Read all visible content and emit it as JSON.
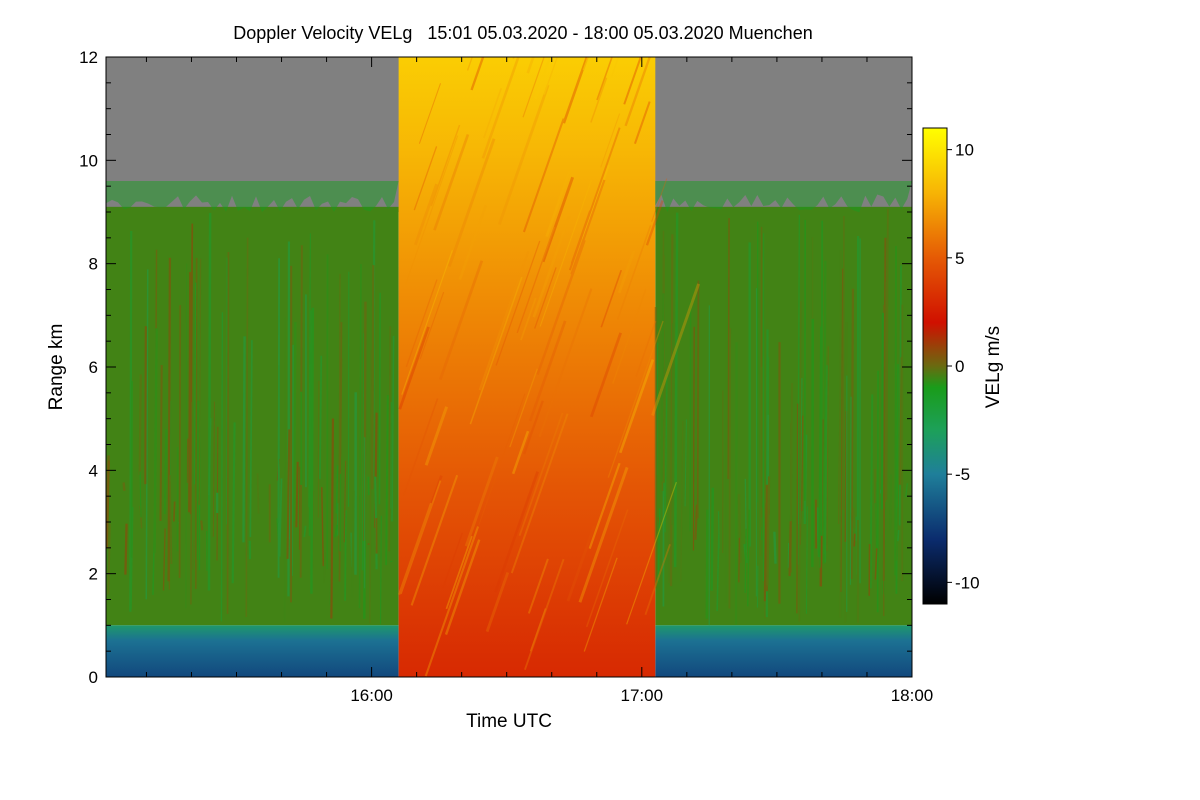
{
  "chart_data": {
    "type": "heatmap",
    "title": "Doppler Velocity VELg   15:01 05.03.2020 - 18:00 05.03.2020 Muenchen",
    "xlabel": "Time UTC",
    "ylabel": "Range km",
    "colorbar_label": "VELg m/s",
    "xlim_hours": [
      15.017,
      18.0
    ],
    "ylim_km": [
      0,
      12
    ],
    "clim": [
      -11,
      11
    ],
    "x_ticks": [
      {
        "value": 16.0,
        "label": "16:00"
      },
      {
        "value": 17.0,
        "label": "17:00"
      },
      {
        "value": 18.0,
        "label": "18:00"
      }
    ],
    "y_ticks": [
      {
        "value": 0,
        "label": "0"
      },
      {
        "value": 2,
        "label": "2"
      },
      {
        "value": 4,
        "label": "4"
      },
      {
        "value": 6,
        "label": "6"
      },
      {
        "value": 8,
        "label": "8"
      },
      {
        "value": 10,
        "label": "10"
      },
      {
        "value": 12,
        "label": "12"
      }
    ],
    "colorbar_ticks": [
      {
        "value": 10,
        "label": "10"
      },
      {
        "value": 5,
        "label": "5"
      },
      {
        "value": 0,
        "label": "0"
      },
      {
        "value": -5,
        "label": "-5"
      },
      {
        "value": -10,
        "label": "-10"
      }
    ],
    "regions": [
      {
        "name": "no-signal",
        "color": "#808080",
        "t_start": 15.017,
        "t_end": 18.0,
        "range_km": [
          9.0,
          12.0
        ],
        "velocity_ms": null
      },
      {
        "name": "cloud-column-left",
        "t_start": 15.017,
        "t_end": 16.1,
        "range_km": [
          1.0,
          9.1
        ],
        "velocity_ms": -0.5
      },
      {
        "name": "cloud-column-right",
        "t_start": 17.05,
        "t_end": 18.0,
        "range_km": [
          1.0,
          9.1
        ],
        "velocity_ms": -0.5
      },
      {
        "name": "boundary-layer-left",
        "t_start": 15.017,
        "t_end": 16.1,
        "range_km": [
          0.0,
          1.0
        ],
        "velocity_ms": -5
      },
      {
        "name": "boundary-layer-right",
        "t_start": 17.05,
        "t_end": 18.0,
        "range_km": [
          0.0,
          1.0
        ],
        "velocity_ms": -5
      },
      {
        "name": "vertical-scan-block",
        "t_start": 16.1,
        "t_end": 17.05,
        "range_km": [
          0.0,
          12.0
        ],
        "velocity_ms_bottom": 3,
        "velocity_ms_top": 9
      }
    ],
    "colormap": [
      {
        "value": -11,
        "color": "#000000"
      },
      {
        "value": -8,
        "color": "#0b2c6e"
      },
      {
        "value": -5,
        "color": "#1f7f9a"
      },
      {
        "value": -3,
        "color": "#1da05a"
      },
      {
        "value": -1,
        "color": "#1a9c1a"
      },
      {
        "value": 0,
        "color": "#6a6a10"
      },
      {
        "value": 2,
        "color": "#d01000"
      },
      {
        "value": 5,
        "color": "#e55a05"
      },
      {
        "value": 8,
        "color": "#f7b405"
      },
      {
        "value": 11,
        "color": "#ffff00"
      }
    ]
  }
}
